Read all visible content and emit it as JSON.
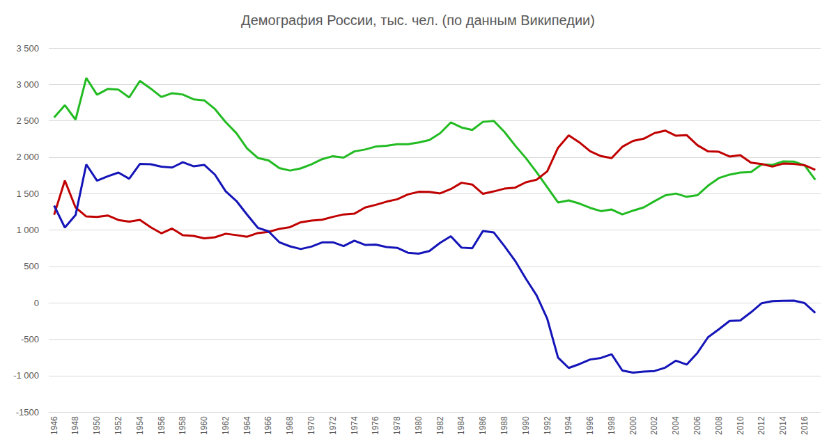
{
  "chart_data": {
    "type": "line",
    "title": "Демография России, тыс. чел. (по данным Википедии)",
    "categories": [
      "1946",
      null,
      "1948",
      null,
      "1950",
      null,
      "1952",
      null,
      "1954",
      null,
      "1956",
      null,
      "1958",
      null,
      "1960",
      null,
      "1962",
      null,
      "1964",
      null,
      "1966",
      null,
      "1968",
      null,
      "1970",
      null,
      "1972",
      null,
      "1974",
      null,
      "1976",
      null,
      "1978",
      null,
      "1980",
      null,
      "1982",
      null,
      "1984",
      null,
      "1986",
      null,
      "1988",
      null,
      "1990",
      null,
      "1992",
      null,
      "1994",
      null,
      "1996",
      null,
      "1998",
      null,
      "2000",
      null,
      "2002",
      null,
      "2004",
      null,
      "2006",
      null,
      "2008",
      null,
      "2010",
      null,
      "2012",
      null,
      "2014",
      null,
      "2016",
      null
    ],
    "series": [
      {
        "color": "#22bb22",
        "values": [
          2546,
          2715,
          2516,
          3089,
          2859,
          2938,
          2928,
          2822,
          3048,
          2944,
          2827,
          2880,
          2861,
          2796,
          2782,
          2662,
          2483,
          2331,
          2121,
          1991,
          1957,
          1851,
          1817,
          1847,
          1904,
          1974,
          2015,
          1995,
          2080,
          2106,
          2147,
          2157,
          2179,
          2179,
          2203,
          2237,
          2329,
          2478,
          2409,
          2375,
          2486,
          2500,
          2349,
          2161,
          1989,
          1795,
          1588,
          1379,
          1408,
          1364,
          1305,
          1260,
          1283,
          1215,
          1267,
          1312,
          1397,
          1477,
          1502,
          1457,
          1479,
          1610,
          1714,
          1762,
          1789,
          1797,
          1902,
          1896,
          1943,
          1940,
          1889,
          1690
        ]
      },
      {
        "color": "#c00000",
        "values": [
          1210,
          1680,
          1310,
          1187,
          1180,
          1200,
          1138,
          1117,
          1139,
          1040,
          956,
          1021,
          930,
          920,
          887,
          901,
          950,
          931,
          909,
          959,
          975,
          1017,
          1040,
          1107,
          1131,
          1143,
          1182,
          1215,
          1225,
          1309,
          1347,
          1390,
          1423,
          1490,
          1526,
          1525,
          1504,
          1563,
          1650,
          1625,
          1498,
          1531,
          1569,
          1583,
          1656,
          1691,
          1807,
          2129,
          2301,
          2204,
          2082,
          2016,
          1988,
          2144,
          2225,
          2255,
          2332,
          2366,
          2295,
          2304,
          2166,
          2080,
          2076,
          2010,
          2029,
          1926,
          1906,
          1872,
          1913,
          1908,
          1891,
          1826
        ]
      },
      {
        "color": "#1414b8",
        "values": [
          1336,
          1035,
          1206,
          1902,
          1679,
          1738,
          1790,
          1705,
          1909,
          1904,
          1871,
          1859,
          1931,
          1876,
          1895,
          1761,
          1533,
          1400,
          1212,
          1032,
          982,
          834,
          777,
          740,
          773,
          831,
          833,
          780,
          855,
          797,
          800,
          767,
          756,
          689,
          677,
          712,
          825,
          915,
          759,
          750,
          988,
          969,
          780,
          578,
          333,
          104,
          -219,
          -750,
          -893,
          -840,
          -777,
          -756,
          -705,
          -929,
          -958,
          -943,
          -935,
          -889,
          -793,
          -847,
          -687,
          -470,
          -362,
          -248,
          -240,
          -129,
          -4,
          24,
          30,
          32,
          -2,
          -136
        ]
      }
    ],
    "ylim": [
      -1500,
      3500
    ],
    "yticks": [
      -1500,
      {
        "value": -1000,
        "label": "-1 000"
      },
      -500,
      0,
      500,
      {
        "value": 1000,
        "label": "1 000"
      },
      {
        "value": 1500,
        "label": "1 500"
      },
      {
        "value": 2000,
        "label": "2 000"
      },
      {
        "value": 2500,
        "label": "2 500"
      },
      {
        "value": 3000,
        "label": "3 000"
      },
      {
        "value": 3500,
        "label": "3 500"
      }
    ],
    "grid": true
  }
}
